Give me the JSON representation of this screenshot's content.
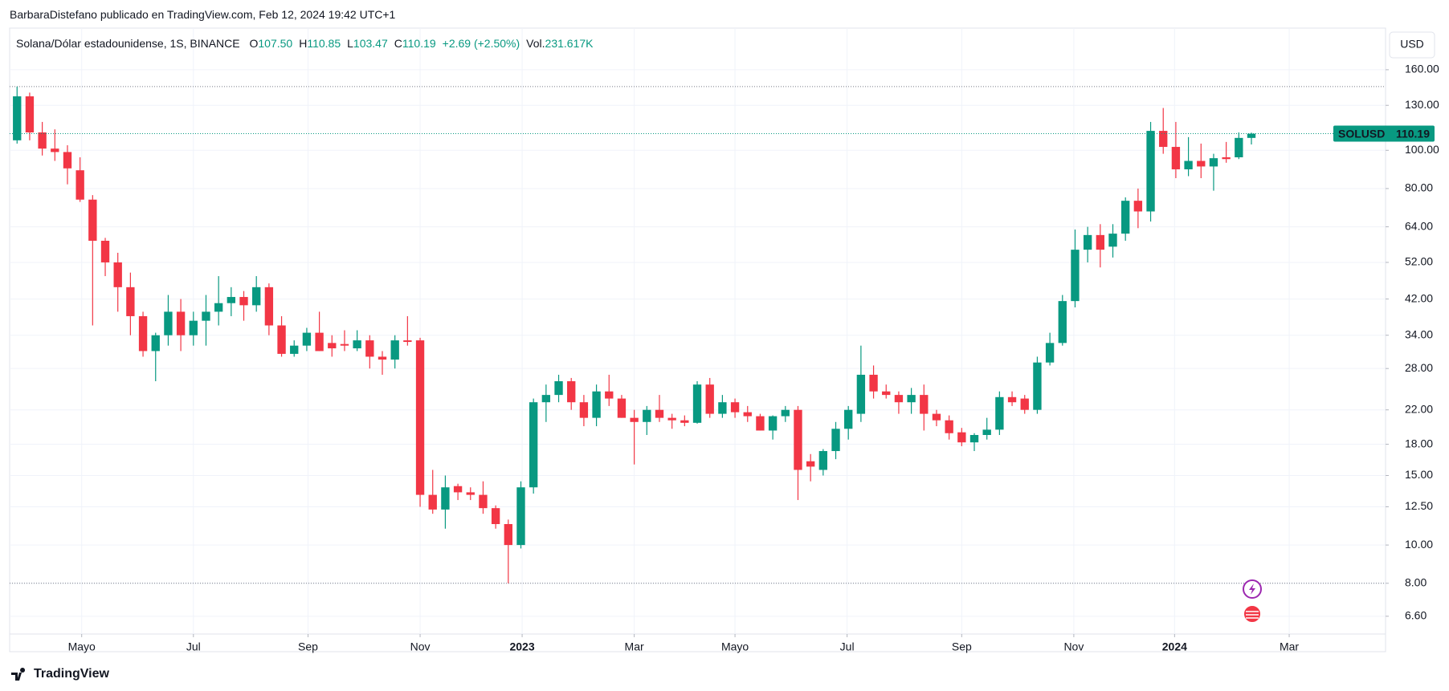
{
  "chart_data": {
    "type": "candlestick",
    "byline": "BarbaraDistefano publicado en TradingView.com, Feb 12, 2024 19:42 UTC+1",
    "title": "Solana/Dólar estadounidense, 1S, BINANCE",
    "legend": [
      {
        "label": "O",
        "value": "107.50"
      },
      {
        "label": "H",
        "value": "110.85"
      },
      {
        "label": "L",
        "value": "103.47"
      },
      {
        "label": "C",
        "value": "110.19"
      }
    ],
    "change": "+2.69 (+2.50%)",
    "volume_label": "Vol.",
    "volume": "231.617K",
    "currency": "USD",
    "price_tag": "SOLUSD",
    "brand": "TradingView",
    "up_color": "#089981",
    "down_color": "#f23645",
    "log_scale": true,
    "grid": true,
    "open": [
      106,
      137,
      111,
      101,
      99,
      89,
      75,
      59,
      52,
      45,
      38,
      31,
      34,
      39,
      34,
      37,
      39,
      41,
      42.5,
      40.5,
      45,
      36,
      30.5,
      32,
      34.5,
      32.5,
      32.3,
      31.5,
      33,
      30,
      29.5,
      33,
      33,
      13.4,
      12.3,
      14.1,
      13.6,
      13.4,
      12.4,
      11.3,
      10,
      14,
      23,
      24,
      26,
      23,
      21,
      24.5,
      23.5,
      21,
      20.5,
      22,
      21,
      20.7,
      20.4,
      25.5,
      21.5,
      23,
      21.7,
      21.2,
      19.5,
      21.2,
      22,
      16.3,
      15.5,
      17.3,
      19.7,
      21.5,
      27,
      24.5,
      24,
      23,
      24,
      21.5,
      20.7,
      19.3,
      18.2,
      19,
      19.6,
      23.7,
      23.5,
      22,
      29,
      32.5,
      41.5,
      56,
      61,
      57,
      61.5,
      74.5,
      70,
      112,
      102,
      89.5,
      94,
      91,
      96,
      96,
      107.5
    ],
    "high": [
      145,
      140,
      118,
      113,
      103,
      96,
      77,
      60,
      55,
      49,
      39,
      34.5,
      43,
      42,
      39,
      43,
      48,
      45,
      44,
      48,
      46,
      38,
      33,
      35.5,
      39,
      34,
      35,
      35,
      34,
      31,
      34,
      38,
      33.5,
      15.5,
      15,
      14.3,
      14,
      14.5,
      12.6,
      11.6,
      14.5,
      23.5,
      25.5,
      27,
      26.5,
      24,
      25.5,
      27,
      24,
      22,
      22.5,
      24,
      21.5,
      21.3,
      26,
      26.5,
      24,
      23.5,
      22.5,
      21.5,
      21.3,
      22.5,
      22.5,
      17,
      17.5,
      20.5,
      22.5,
      32,
      28.5,
      25.5,
      24.5,
      25,
      25.5,
      22,
      21.3,
      19.8,
      19.2,
      21,
      24.5,
      24.5,
      24,
      30,
      34.5,
      43,
      63,
      64,
      65,
      65,
      76,
      80,
      118,
      128,
      118,
      108,
      104,
      98,
      105,
      111,
      110.85
    ],
    "low": [
      104,
      106,
      97,
      94,
      82,
      74,
      36,
      48,
      39,
      34,
      30,
      26,
      32,
      31,
      32,
      32,
      36,
      38,
      37,
      39,
      34,
      30,
      30,
      31,
      31,
      30,
      31,
      31,
      28,
      27,
      28,
      32,
      12.5,
      12,
      11,
      13,
      13,
      12,
      11,
      8,
      9.8,
      13.5,
      20.5,
      23,
      22,
      20,
      20,
      22.5,
      21,
      16,
      19,
      20.5,
      19.7,
      20,
      20.3,
      21,
      21,
      21,
      20.5,
      19.5,
      18.5,
      20.5,
      13,
      14.5,
      15,
      16.5,
      18.5,
      20.5,
      23.5,
      23.5,
      21.5,
      21.5,
      19.5,
      20,
      18.5,
      17.8,
      17.3,
      18.5,
      19,
      22.5,
      21.5,
      21.5,
      28.5,
      32,
      40,
      52,
      50.5,
      53.5,
      59,
      63.5,
      66,
      98,
      85,
      86,
      85,
      79,
      93,
      95,
      103.47
    ],
    "close": [
      137,
      111,
      101,
      99,
      90,
      75,
      59,
      52,
      45,
      38,
      31,
      34,
      39,
      34,
      37,
      39,
      41,
      42.5,
      40.5,
      45,
      36,
      30.5,
      32,
      34.5,
      31,
      31.5,
      32,
      33,
      30,
      29.5,
      33,
      32.7,
      13.4,
      12.3,
      14,
      13.6,
      13.4,
      12.4,
      11.3,
      10,
      14,
      23,
      24,
      26,
      23,
      21,
      24.5,
      23.5,
      21,
      20.5,
      22,
      21,
      20.7,
      20.4,
      25.5,
      21.5,
      23,
      21.7,
      21.2,
      19.5,
      21.2,
      22,
      15.5,
      15.8,
      17.3,
      19.7,
      22,
      27,
      24.5,
      24,
      23,
      24,
      21.5,
      20.7,
      19.2,
      18.2,
      19,
      19.6,
      23.7,
      23,
      22,
      29,
      32.5,
      41.5,
      56,
      61,
      56,
      61.5,
      74.5,
      70,
      112,
      102,
      89.5,
      94,
      91,
      95.5,
      95,
      107.5,
      110.19
    ],
    "xlim": [
      -0.59,
      108.65
    ],
    "xticks": [
      {
        "value": 5.13,
        "label": "Mayo"
      },
      {
        "value": 14.0,
        "label": "Jul"
      },
      {
        "value": 23.1,
        "label": "Sep"
      },
      {
        "value": 32.0,
        "label": "Nov"
      },
      {
        "value": 40.1,
        "label": "2023"
      },
      {
        "value": 49.0,
        "label": "Mar"
      },
      {
        "value": 57.0,
        "label": "Mayo"
      },
      {
        "value": 65.9,
        "label": "Jul"
      },
      {
        "value": 75.0,
        "label": "Sep"
      },
      {
        "value": 83.9,
        "label": "Nov"
      },
      {
        "value": 91.9,
        "label": "2024"
      },
      {
        "value": 101.0,
        "label": "Mar"
      }
    ],
    "ylim": [
      5.95,
      204
    ],
    "yticks": [
      {
        "value": 160,
        "label": "160.00"
      },
      {
        "value": 130,
        "label": "130.00"
      },
      {
        "value": 100,
        "label": "100.00"
      },
      {
        "value": 80,
        "label": "80.00"
      },
      {
        "value": 64,
        "label": "64.00"
      },
      {
        "value": 52,
        "label": "52.00"
      },
      {
        "value": 42,
        "label": "42.00"
      },
      {
        "value": 34,
        "label": "34.00"
      },
      {
        "value": 28,
        "label": "28.00"
      },
      {
        "value": 22,
        "label": "22.00"
      },
      {
        "value": 18,
        "label": "18.00"
      },
      {
        "value": 15,
        "label": "15.00"
      },
      {
        "value": 12.5,
        "label": "12.50"
      },
      {
        "value": 10,
        "label": "10.00"
      },
      {
        "value": 8,
        "label": "8.00"
      },
      {
        "value": 6.6,
        "label": "6.60"
      }
    ]
  }
}
